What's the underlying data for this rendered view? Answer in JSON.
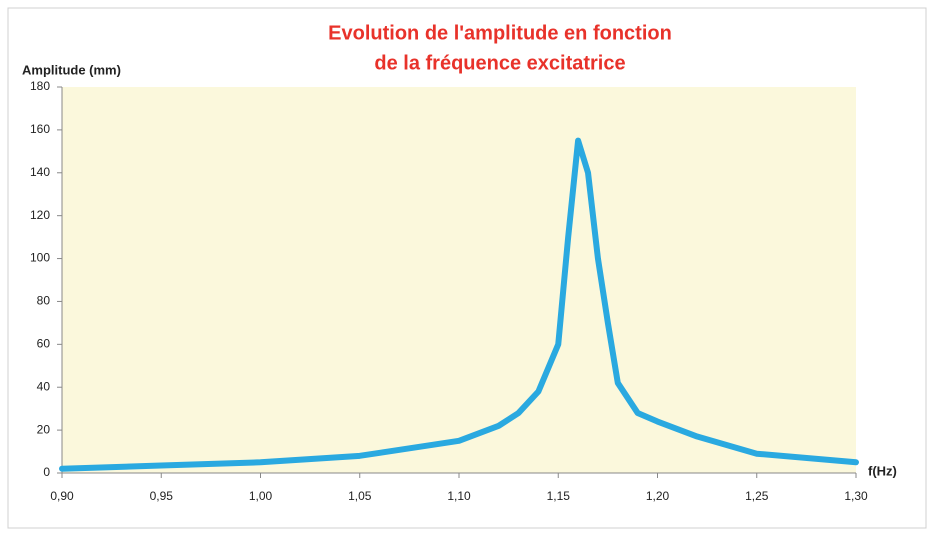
{
  "chart_data": {
    "type": "line",
    "title": "Evolution de l'amplitude  en fonction",
    "subtitle": "de la fréquence excitatrice",
    "y_label": "Amplitude (mm)",
    "x_label": "f(Hz)",
    "x": [
      0.9,
      0.95,
      1.0,
      1.05,
      1.1,
      1.12,
      1.13,
      1.14,
      1.15,
      1.155,
      1.16,
      1.165,
      1.17,
      1.175,
      1.18,
      1.19,
      1.2,
      1.22,
      1.25,
      1.3
    ],
    "series": [
      {
        "name": "Amplitude",
        "color": "#2aa9e0",
        "values": [
          2,
          3.5,
          5,
          8,
          15,
          22,
          28,
          38,
          60,
          110,
          155,
          140,
          100,
          70,
          42,
          28,
          24,
          17,
          9,
          5
        ]
      }
    ],
    "xlim": [
      0.9,
      1.3
    ],
    "xticks": [
      {
        "value": 0.9,
        "label": "0,90"
      },
      {
        "value": 0.95,
        "label": "0,95"
      },
      {
        "value": 1.0,
        "label": "1,00"
      },
      {
        "value": 1.05,
        "label": "1,05"
      },
      {
        "value": 1.1,
        "label": "1,10"
      },
      {
        "value": 1.15,
        "label": "1,15"
      },
      {
        "value": 1.2,
        "label": "1,20"
      },
      {
        "value": 1.25,
        "label": "1,25"
      },
      {
        "value": 1.3,
        "label": "1,30"
      }
    ],
    "ylim": [
      0,
      180
    ],
    "yticks": [
      0,
      20,
      40,
      60,
      80,
      100,
      120,
      140,
      160,
      180
    ],
    "grid": false
  }
}
